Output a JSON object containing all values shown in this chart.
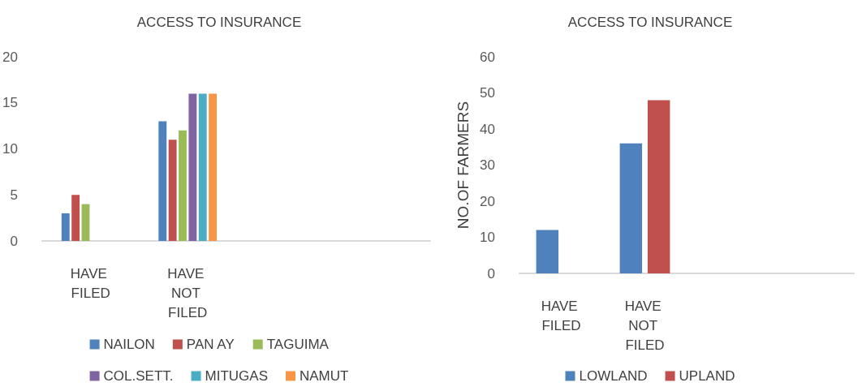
{
  "chart_data": [
    {
      "type": "bar",
      "title": "ACCESS TO INSURANCE",
      "categories": [
        "HAVE FILED",
        "HAVE NOT FILED",
        null,
        null
      ],
      "series": [
        {
          "name": "NAILON",
          "color": "#4f81bd",
          "values": [
            3,
            13,
            null,
            null
          ]
        },
        {
          "name": "PAN AY",
          "color": "#c0504d",
          "values": [
            5,
            11,
            null,
            null
          ]
        },
        {
          "name": "TAGUIMA",
          "color": "#9bbb59",
          "values": [
            4,
            12,
            null,
            null
          ]
        },
        {
          "name": "COL.SETT.",
          "color": "#8064a2",
          "values": [
            null,
            16,
            null,
            null
          ]
        },
        {
          "name": "MITUGAS",
          "color": "#4bacc6",
          "values": [
            null,
            16,
            null,
            null
          ]
        },
        {
          "name": "NAMUT",
          "color": "#f79646",
          "values": [
            null,
            16,
            null,
            null
          ]
        }
      ],
      "ylim": [
        0,
        20
      ],
      "yticks": [
        0,
        5,
        10,
        15,
        20
      ],
      "grid": false,
      "legend": "bottom"
    },
    {
      "type": "bar",
      "title": "ACCESS TO INSURANCE",
      "ylabel": "NO.OF FARMERS",
      "categories": [
        "HAVE FILED",
        "HAVE NOT FILED",
        null,
        null
      ],
      "series": [
        {
          "name": "LOWLAND",
          "color": "#4f81bd",
          "values": [
            12,
            36,
            null,
            null
          ]
        },
        {
          "name": "UPLAND",
          "color": "#c0504d",
          "values": [
            null,
            48,
            null,
            null
          ]
        }
      ],
      "ylim": [
        0,
        60
      ],
      "yticks": [
        0,
        10,
        20,
        30,
        40,
        50,
        60
      ],
      "grid": false,
      "legend": "bottom"
    }
  ]
}
